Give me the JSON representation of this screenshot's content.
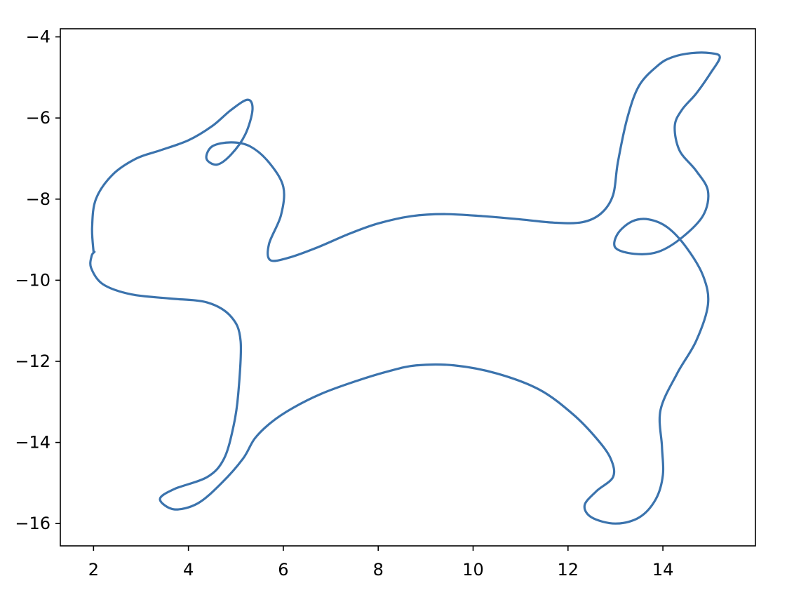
{
  "chart_data": {
    "type": "line",
    "title": "",
    "xlabel": "",
    "ylabel": "",
    "xlim": [
      1.3,
      15.95
    ],
    "ylim": [
      -16.55,
      -3.8
    ],
    "xticks": [
      2,
      4,
      6,
      8,
      10,
      12,
      14
    ],
    "yticks": [
      -4,
      -6,
      -8,
      -10,
      -12,
      -14,
      -16
    ],
    "xtick_labels": [
      "2",
      "4",
      "6",
      "8",
      "10",
      "12",
      "14"
    ],
    "ytick_labels": [
      "−4",
      "−6",
      "−8",
      "−10",
      "−12",
      "−14",
      "−16"
    ],
    "grid": false,
    "legend": "none",
    "series": [
      {
        "color": "#3b73ad",
        "x": [
          2.0,
          1.97,
          2.05,
          2.4,
          2.9,
          3.4,
          4.0,
          4.5,
          4.9,
          5.25,
          5.35,
          5.2,
          4.9,
          4.6,
          4.38,
          4.5,
          4.9,
          5.3,
          5.7,
          6.0,
          5.95,
          5.7,
          5.72,
          6.1,
          6.7,
          7.4,
          8.0,
          8.7,
          9.4,
          10.2,
          11.0,
          11.7,
          12.3,
          12.7,
          12.95,
          13.05,
          13.25,
          13.5,
          13.9,
          14.2,
          14.6,
          15.0,
          15.2,
          15.0,
          14.7,
          14.4,
          14.25,
          14.35,
          14.7,
          14.95,
          14.85,
          14.4,
          13.9,
          13.4,
          13.0,
          13.05,
          13.35,
          13.7,
          14.1,
          14.5,
          14.85,
          14.95,
          14.7,
          14.3,
          13.95,
          13.98,
          14.0,
          13.85,
          13.5,
          13.0,
          12.5,
          12.35,
          12.6,
          12.95,
          12.9,
          12.6,
          12.1,
          11.4,
          10.5,
          9.6,
          8.8,
          8.2,
          7.5,
          6.8,
          6.2,
          5.75,
          5.4,
          5.15,
          4.7,
          4.2,
          3.7,
          3.4,
          3.7,
          4.4,
          4.75,
          4.95,
          5.05,
          5.1,
          4.9,
          4.4,
          3.6,
          2.8,
          2.2,
          1.95,
          1.96,
          2.02
        ],
        "y": [
          -9.3,
          -8.7,
          -8.0,
          -7.4,
          -7.0,
          -6.8,
          -6.55,
          -6.2,
          -5.8,
          -5.55,
          -5.8,
          -6.4,
          -6.9,
          -7.15,
          -7.0,
          -6.7,
          -6.6,
          -6.7,
          -7.1,
          -7.7,
          -8.4,
          -9.1,
          -9.5,
          -9.45,
          -9.2,
          -8.85,
          -8.6,
          -8.42,
          -8.37,
          -8.42,
          -8.5,
          -8.58,
          -8.57,
          -8.35,
          -7.9,
          -7.1,
          -6.0,
          -5.2,
          -4.7,
          -4.5,
          -4.4,
          -4.4,
          -4.5,
          -4.9,
          -5.4,
          -5.8,
          -6.2,
          -6.8,
          -7.3,
          -7.8,
          -8.4,
          -8.95,
          -9.3,
          -9.35,
          -9.2,
          -8.85,
          -8.55,
          -8.5,
          -8.7,
          -9.2,
          -9.9,
          -10.6,
          -11.5,
          -12.3,
          -13.2,
          -14.1,
          -14.8,
          -15.4,
          -15.85,
          -16.0,
          -15.85,
          -15.55,
          -15.2,
          -14.85,
          -14.4,
          -13.9,
          -13.3,
          -12.7,
          -12.3,
          -12.1,
          -12.1,
          -12.25,
          -12.5,
          -12.8,
          -13.15,
          -13.5,
          -13.9,
          -14.4,
          -15.0,
          -15.5,
          -15.65,
          -15.4,
          -15.15,
          -14.85,
          -14.4,
          -13.6,
          -12.8,
          -11.5,
          -10.9,
          -10.55,
          -10.45,
          -10.35,
          -10.1,
          -9.7,
          -9.4,
          -9.3
        ]
      }
    ]
  }
}
